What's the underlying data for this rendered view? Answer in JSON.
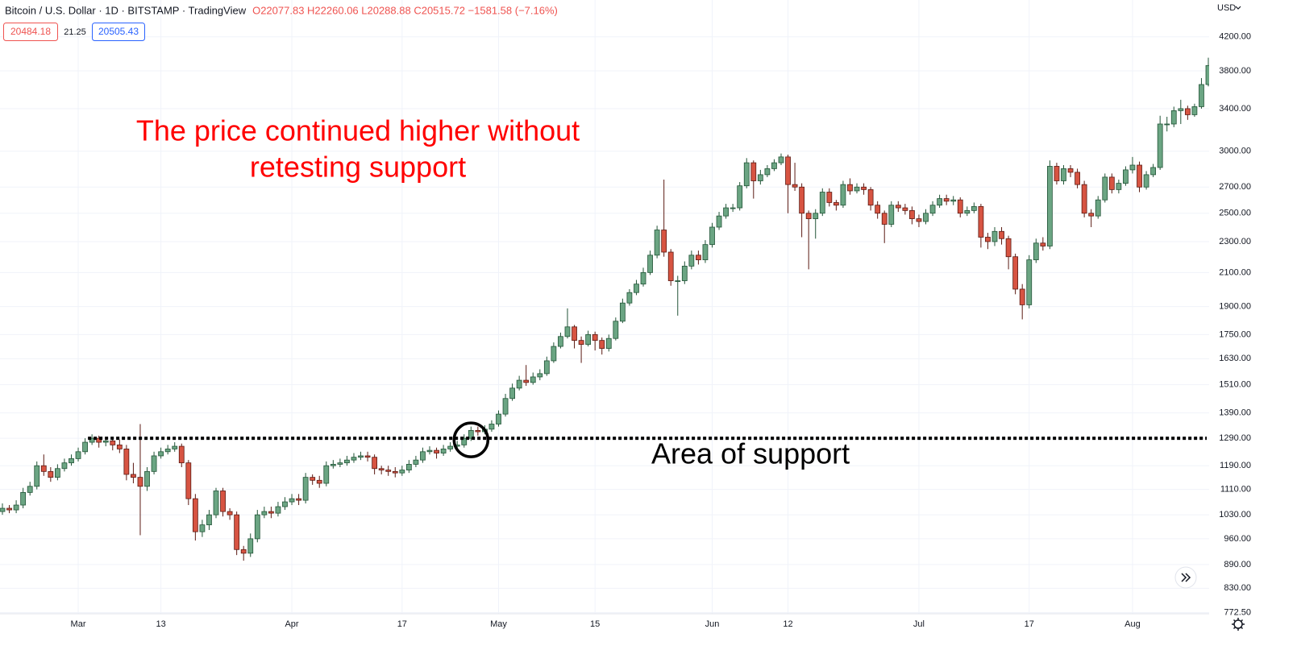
{
  "chart_data": {
    "type": "candlestick",
    "title": "Bitcoin / U.S. Dollar · 1D · BITSTAMP · TradingView",
    "ohlc_text": "O22077.83 H22260.06 L20288.88 C20515.72 −1581.58 (−7.16%)",
    "bid": "20484.18",
    "spread": "21.25",
    "ask": "20505.43",
    "currency": "USD",
    "annotation": [
      "The price continued higher without",
      "retesting support"
    ],
    "support_label": "Area of support",
    "support_level": 1290,
    "log_scale": true,
    "grid": true,
    "up_color": "#6ba583",
    "down_color": "#d75442",
    "up_border": "#225437",
    "down_border": "#5b1a13",
    "annotation_color": "#ff0000",
    "ylim": [
      770,
      4680
    ],
    "yticks": [
      {
        "value": 772.5,
        "label": "772.50"
      },
      {
        "value": 830,
        "label": "830.00"
      },
      {
        "value": 890,
        "label": "890.00"
      },
      {
        "value": 960,
        "label": "960.00"
      },
      {
        "value": 1030,
        "label": "1030.00"
      },
      {
        "value": 1110,
        "label": "1110.00"
      },
      {
        "value": 1190,
        "label": "1190.00"
      },
      {
        "value": 1290,
        "label": "1290.00"
      },
      {
        "value": 1390,
        "label": "1390.00"
      },
      {
        "value": 1510,
        "label": "1510.00"
      },
      {
        "value": 1630,
        "label": "1630.00"
      },
      {
        "value": 1750,
        "label": "1750.00"
      },
      {
        "value": 1900,
        "label": "1900.00"
      },
      {
        "value": 2100,
        "label": "2100.00"
      },
      {
        "value": 2300,
        "label": "2300.00"
      },
      {
        "value": 2500,
        "label": "2500.00"
      },
      {
        "value": 2700,
        "label": "2700.00"
      },
      {
        "value": 3000,
        "label": "3000.00"
      },
      {
        "value": 3400,
        "label": "3400.00"
      },
      {
        "value": 3800,
        "label": "3800.00"
      },
      {
        "value": 4200,
        "label": "4200.00"
      }
    ],
    "categories": [
      null,
      null,
      null,
      null,
      null,
      null,
      null,
      null,
      null,
      null,
      null,
      "Mar",
      null,
      null,
      null,
      null,
      null,
      null,
      null,
      null,
      null,
      null,
      null,
      "13",
      null,
      null,
      null,
      null,
      null,
      null,
      null,
      null,
      null,
      null,
      null,
      null,
      null,
      null,
      null,
      null,
      null,
      null,
      "Apr",
      null,
      null,
      null,
      null,
      null,
      null,
      null,
      null,
      null,
      null,
      null,
      null,
      null,
      null,
      null,
      "17",
      null,
      null,
      null,
      null,
      null,
      null,
      null,
      null,
      null,
      null,
      null,
      null,
      null,
      "May",
      null,
      null,
      null,
      null,
      null,
      null,
      null,
      null,
      null,
      null,
      null,
      null,
      null,
      "15",
      null,
      null,
      null,
      null,
      null,
      null,
      null,
      null,
      null,
      null,
      null,
      null,
      null,
      null,
      null,
      null,
      "Jun",
      null,
      null,
      null,
      null,
      null,
      null,
      null,
      null,
      null,
      null,
      "12",
      null,
      null,
      null,
      null,
      null,
      null,
      null,
      null,
      null,
      null,
      null,
      null,
      null,
      null,
      null,
      null,
      null,
      null,
      "Jul",
      null,
      null,
      null,
      null,
      null,
      null,
      null,
      null,
      null,
      null,
      null,
      null,
      null,
      null,
      null,
      "17",
      null,
      null,
      null,
      null,
      null,
      null,
      null,
      null,
      null,
      null,
      null,
      null,
      null,
      null,
      "Aug",
      null,
      null,
      null,
      null,
      null,
      null,
      null,
      null,
      null,
      null,
      null
    ],
    "open": [
      1040,
      1050,
      1045,
      1060,
      1100,
      1120,
      1190,
      1170,
      1150,
      1180,
      1200,
      1215,
      1240,
      1275,
      1290,
      1275,
      1280,
      1265,
      1250,
      1160,
      1150,
      1120,
      1170,
      1225,
      1240,
      1250,
      1260,
      1200,
      1080,
      980,
      1000,
      1030,
      1105,
      1040,
      1030,
      930,
      920,
      960,
      1030,
      1040,
      1035,
      1055,
      1070,
      1080,
      1075,
      1150,
      1140,
      1130,
      1190,
      1195,
      1200,
      1210,
      1220,
      1225,
      1220,
      1180,
      1175,
      1170,
      1165,
      1175,
      1195,
      1210,
      1240,
      1245,
      1235,
      1250,
      1260,
      1265,
      1290,
      1320,
      1315,
      1325,
      1345,
      1385,
      1450,
      1495,
      1530,
      1520,
      1545,
      1560,
      1620,
      1690,
      1740,
      1790,
      1720,
      1700,
      1750,
      1720,
      1680,
      1730,
      1820,
      1920,
      1980,
      2030,
      2100,
      2210,
      2380,
      2230,
      2050,
      2050,
      2140,
      2210,
      2180,
      2280,
      2400,
      2480,
      2540,
      2540,
      2710,
      2900,
      2750,
      2800,
      2850,
      2900,
      2950,
      2720,
      2700,
      2500,
      2460,
      2500,
      2660,
      2580,
      2560,
      2720,
      2670,
      2700,
      2680,
      2560,
      2500,
      2420,
      2560,
      2540,
      2520,
      2460,
      2440,
      2500,
      2560,
      2610,
      2590,
      2600,
      2500,
      2520,
      2550,
      2330,
      2300,
      2370,
      2320,
      2200,
      2000,
      1910,
      2180,
      2290,
      2270,
      2870,
      2750,
      2850,
      2820,
      2720,
      2500,
      2480,
      2600,
      2780,
      2680,
      2730,
      2840,
      2880,
      2700,
      2800,
      2860,
      3250,
      3250,
      3380,
      3400,
      3340,
      3420,
      3650
    ],
    "high": [
      1065,
      1060,
      1075,
      1115,
      1135,
      1205,
      1230,
      1185,
      1195,
      1215,
      1230,
      1255,
      1290,
      1305,
      1300,
      1295,
      1290,
      1285,
      1265,
      1200,
      1345,
      1185,
      1240,
      1255,
      1265,
      1275,
      1270,
      1210,
      1095,
      1015,
      1045,
      1115,
      1115,
      1050,
      1040,
      940,
      975,
      1045,
      1055,
      1055,
      1070,
      1085,
      1095,
      1095,
      1165,
      1160,
      1155,
      1205,
      1210,
      1215,
      1225,
      1235,
      1240,
      1240,
      1230,
      1190,
      1190,
      1185,
      1190,
      1210,
      1225,
      1255,
      1260,
      1255,
      1265,
      1275,
      1280,
      1305,
      1335,
      1335,
      1340,
      1360,
      1400,
      1470,
      1515,
      1550,
      1600,
      1565,
      1580,
      1640,
      1710,
      1760,
      1890,
      1800,
      1740,
      1770,
      1765,
      1735,
      1750,
      1840,
      1945,
      2000,
      2055,
      2130,
      2240,
      2410,
      2760,
      2250,
      2080,
      2170,
      2240,
      2240,
      2310,
      2430,
      2510,
      2570,
      2570,
      2740,
      2940,
      2920,
      2840,
      2880,
      2930,
      2980,
      2970,
      2900,
      2730,
      2520,
      2530,
      2690,
      2690,
      2600,
      2750,
      2770,
      2730,
      2730,
      2700,
      2590,
      2520,
      2590,
      2590,
      2570,
      2550,
      2490,
      2530,
      2590,
      2640,
      2640,
      2630,
      2620,
      2550,
      2580,
      2570,
      2360,
      2400,
      2400,
      2340,
      2220,
      2030,
      2210,
      2320,
      2330,
      2920,
      2900,
      2880,
      2880,
      2850,
      2750,
      2530,
      2630,
      2810,
      2810,
      2760,
      2870,
      2950,
      2910,
      2830,
      2890,
      3330,
      3320,
      3420,
      3490,
      3430,
      3450,
      3720,
      3950
    ],
    "low": [
      1030,
      1035,
      1035,
      1050,
      1090,
      1110,
      1155,
      1135,
      1140,
      1170,
      1190,
      1205,
      1230,
      1265,
      1255,
      1260,
      1245,
      1235,
      1140,
      1130,
      970,
      1105,
      1160,
      1215,
      1230,
      1240,
      1185,
      1060,
      955,
      965,
      985,
      1020,
      1025,
      1015,
      915,
      900,
      910,
      950,
      1020,
      1020,
      1025,
      1045,
      1060,
      1060,
      1065,
      1125,
      1115,
      1120,
      1180,
      1185,
      1190,
      1200,
      1210,
      1205,
      1160,
      1160,
      1155,
      1150,
      1155,
      1165,
      1185,
      1200,
      1230,
      1215,
      1225,
      1240,
      1250,
      1255,
      1280,
      1300,
      1305,
      1315,
      1335,
      1375,
      1440,
      1485,
      1505,
      1510,
      1530,
      1550,
      1610,
      1680,
      1730,
      1680,
      1610,
      1690,
      1670,
      1650,
      1665,
      1720,
      1810,
      1905,
      1965,
      2015,
      2085,
      2190,
      2200,
      2020,
      1850,
      2030,
      2120,
      2150,
      2160,
      2260,
      2380,
      2460,
      2510,
      2520,
      2690,
      2610,
      2720,
      2780,
      2830,
      2880,
      2500,
      2670,
      2330,
      2120,
      2320,
      2480,
      2550,
      2520,
      2540,
      2640,
      2650,
      2640,
      2520,
      2460,
      2290,
      2400,
      2510,
      2490,
      2420,
      2400,
      2420,
      2480,
      2540,
      2560,
      2560,
      2470,
      2480,
      2500,
      2260,
      2250,
      2270,
      2280,
      2120,
      1970,
      1830,
      1890,
      2160,
      2240,
      2250,
      2720,
      2720,
      2780,
      2690,
      2470,
      2400,
      2460,
      2580,
      2650,
      2650,
      2710,
      2810,
      2660,
      2680,
      2780,
      2840,
      3180,
      3220,
      3250,
      3290,
      3320,
      3400,
      3630
    ],
    "close": [
      1050,
      1045,
      1060,
      1100,
      1120,
      1190,
      1170,
      1150,
      1180,
      1200,
      1215,
      1240,
      1275,
      1290,
      1275,
      1280,
      1265,
      1250,
      1160,
      1150,
      1120,
      1170,
      1225,
      1240,
      1250,
      1260,
      1200,
      1080,
      980,
      1000,
      1030,
      1105,
      1040,
      1030,
      930,
      920,
      960,
      1030,
      1040,
      1035,
      1055,
      1070,
      1080,
      1075,
      1150,
      1140,
      1130,
      1190,
      1195,
      1200,
      1210,
      1220,
      1225,
      1220,
      1180,
      1175,
      1170,
      1165,
      1175,
      1195,
      1210,
      1240,
      1245,
      1235,
      1250,
      1260,
      1265,
      1290,
      1320,
      1315,
      1325,
      1345,
      1385,
      1450,
      1495,
      1530,
      1520,
      1545,
      1560,
      1620,
      1690,
      1740,
      1790,
      1720,
      1700,
      1750,
      1720,
      1680,
      1730,
      1820,
      1920,
      1980,
      2030,
      2100,
      2210,
      2380,
      2230,
      2050,
      2050,
      2140,
      2210,
      2180,
      2280,
      2400,
      2480,
      2540,
      2540,
      2710,
      2900,
      2750,
      2800,
      2850,
      2900,
      2950,
      2720,
      2700,
      2500,
      2460,
      2500,
      2660,
      2580,
      2560,
      2720,
      2670,
      2700,
      2680,
      2560,
      2500,
      2420,
      2560,
      2540,
      2520,
      2460,
      2440,
      2500,
      2560,
      2610,
      2590,
      2600,
      2500,
      2520,
      2550,
      2330,
      2300,
      2370,
      2320,
      2200,
      2000,
      1910,
      2180,
      2290,
      2270,
      2870,
      2750,
      2850,
      2820,
      2720,
      2500,
      2480,
      2600,
      2780,
      2680,
      2730,
      2840,
      2880,
      2700,
      2800,
      2860,
      3250,
      3250,
      3380,
      3400,
      3340,
      3420,
      3650,
      3860
    ]
  }
}
